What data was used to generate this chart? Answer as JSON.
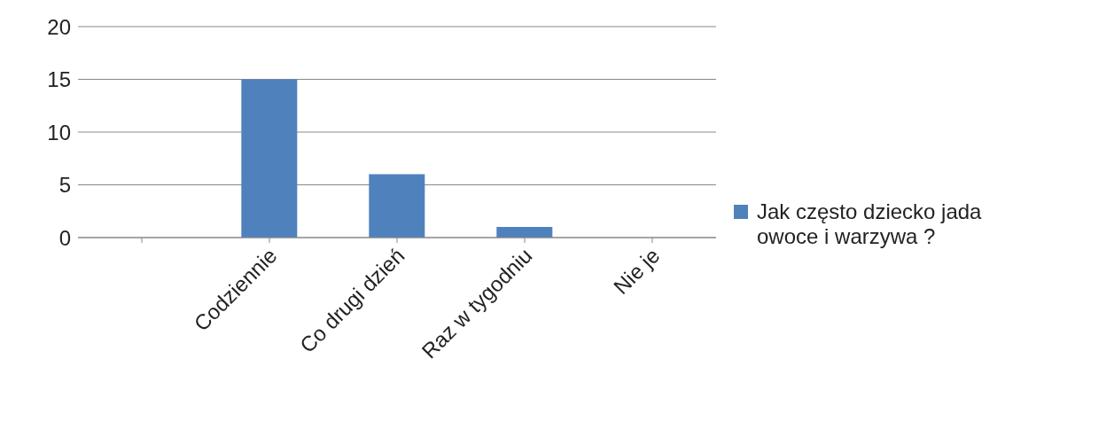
{
  "chart_data": {
    "type": "bar",
    "categories": [
      null,
      "Codziennie",
      "Co drugi dzień",
      "Raz w tygodniu",
      "Nie je"
    ],
    "series": [
      {
        "name": "Jak często dziecko jada owoce i warzywa ?",
        "color": "#4f81bd",
        "values": [
          null,
          15,
          6,
          1,
          0
        ]
      }
    ],
    "ylim": [
      0,
      20
    ],
    "yticks": [
      0,
      5,
      10,
      15,
      20
    ],
    "grid": "y",
    "legend": "right"
  }
}
